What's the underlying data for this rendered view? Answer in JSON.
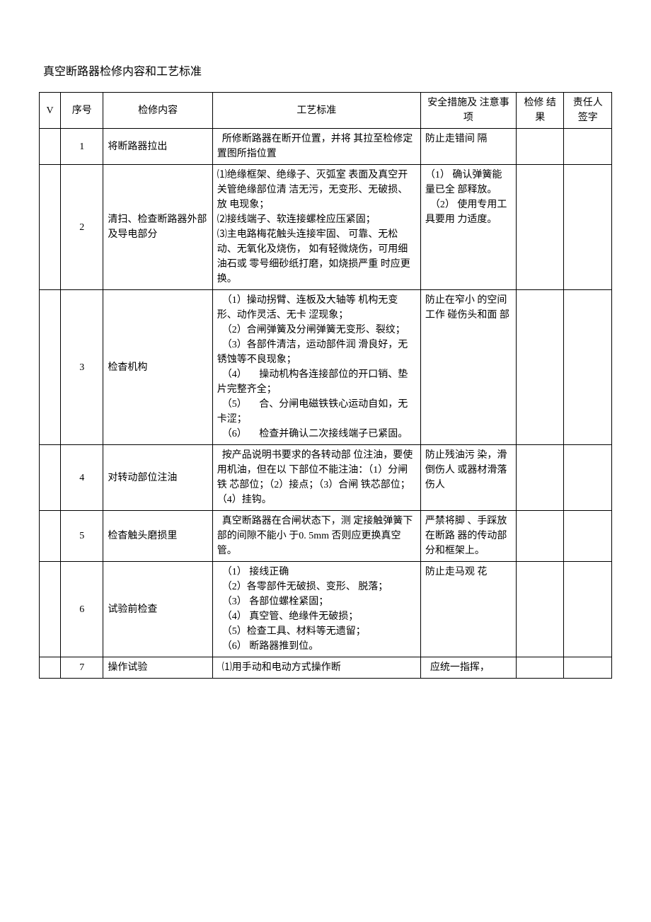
{
  "title": "真空断路器检修内容和工艺标准",
  "headers": {
    "v": "V",
    "seq": "序号",
    "content": "检修内容",
    "std": "工艺标准",
    "safety": "安全措施及 注意事项",
    "result": "检修 结果",
    "sign": "责任人签字"
  },
  "rows": [
    {
      "seq": "1",
      "content": "将断路器拉出",
      "std": "  所修断路器在断开位置，并将 其拉至检修定置图所指位置",
      "safety": "防止走错间 隔"
    },
    {
      "seq": "2",
      "content": "清扫、检查断路器外部及导电部分",
      "std": "⑴绝缘框架、绝缘子、灭弧室 表面及真空开关管绝缘部位清 洁无污，无变形、无破损、放 电现象；\n⑵接线端子、软连接螺栓应压紧固；\n⑶主电路梅花触头连接牢固、 可靠、无松动、无氧化及烧伤， 如有轻微烧伤，可用细油石或 零号细砂纸打磨，如烧损严重 时应更换。",
      "safety": "（1） 确认弹簧能量已全 部释放。\n  （2） 使用专用工具要用 力适度。"
    },
    {
      "seq": "3",
      "content": "检杳机构",
      "std": "  （1）操动拐臂、连板及大轴等 机构无变形、动作灵活、无卡 涩现象；\n  （2）合闸弹簧及分闸弹簧无变形、裂纹；\n  （3）各部件清洁，运动部件润 滑良好，无锈蚀等不良现象；\n  （4）     操动机构各连接部位的开口销、垫片完整齐全；\n  （5）     合、分闸电磁铁铁心运动自如，无卡涩；\n  （6）     检查并确认二次接线端子已紧固。",
      "safety": "防止在窄小 的空间工作 碰伤头和面 部"
    },
    {
      "seq": "4",
      "content": "对转动部位注油",
      "std": "  按产品说明书要求的各转动部 位注油，要使用机油，但在以 下部位不能注油：（1）分闸铁 芯部位；（2）接点；（3）合闸 铁芯部位；（4）挂钩。",
      "safety": "防止残油污 染，滑倒伤人 或器材滑落 伤人"
    },
    {
      "seq": "5",
      "content": "检杳触头磨损里",
      "std": "  真空断路器在合闸状态下，测 定接触弹簧下部的间隙不能小 于0. 5mm 否则应更换真空管。",
      "safety": "严禁将脚 、手踩放在断路 器的传动部 分和框架上。"
    },
    {
      "seq": "6",
      "content": "试验前检查",
      "std": "  （1） 接线正确\n  （2）各零部件无破损、变形、 脱落；\n  （3） 各部位螺栓紧固；\n  （4） 真空管、绝缘件无破损；\n  （5）检查工具、材料等无遗留；\n  （6） 断路器推到位。",
      "safety": "防止走马观 花"
    },
    {
      "seq": "7",
      "content": "操作试验",
      "std": "  ⑴用手动和电动方式操作断",
      "safety": "  应统一指挥，"
    }
  ]
}
